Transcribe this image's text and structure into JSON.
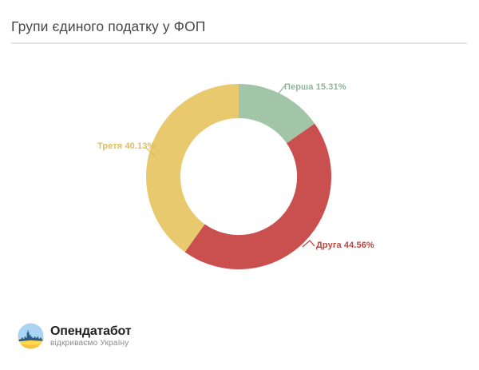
{
  "header": {
    "title": "Групи єдиного податку у ФОП"
  },
  "chart_data": {
    "type": "pie",
    "subtype": "donut",
    "title": "Групи єдиного податку у ФОП",
    "unit": "%",
    "start_angle_deg": 0,
    "direction": "clockwise",
    "inner_radius_ratio": 0.63,
    "legend": "none",
    "labels_style": "outside-callout",
    "segments": [
      {
        "id": "persha",
        "label": "Перша",
        "value": 15.31,
        "display": "Перша 15.31%",
        "color": "#a2c5a8",
        "label_color": "#8fb59a"
      },
      {
        "id": "druga",
        "label": "Друга",
        "value": 44.56,
        "display": "Друга 44.56%",
        "color": "#ca504f",
        "label_color": "#c5413e"
      },
      {
        "id": "tretia",
        "label": "Третя",
        "value": 40.13,
        "display": "Третя 40.13%",
        "color": "#e8c96e",
        "label_color": "#e2bc57"
      }
    ]
  },
  "footer": {
    "brand_name": "Опендатабот",
    "brand_tagline": "відкриваємо Україну",
    "logo_colors": {
      "sky": "#a9d4f3",
      "ground": "#ffd84d",
      "ground_shade": "#f6c33f",
      "skyline": "#2b5c86"
    }
  }
}
